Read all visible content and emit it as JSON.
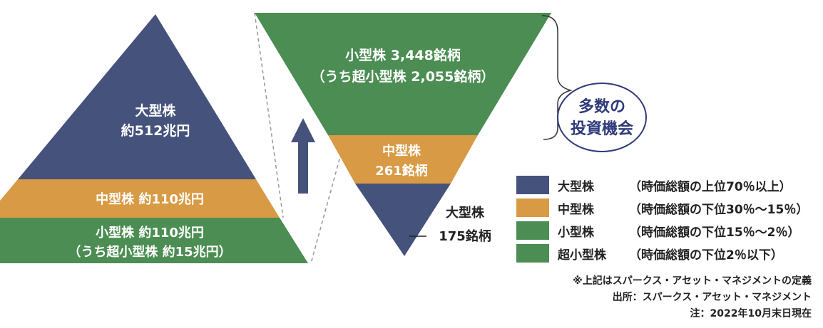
{
  "colors": {
    "large": "#44527c",
    "mid": "#d89a44",
    "small": "#4b8d52",
    "tiny": "#4b8d52",
    "callout": "#2f3b7a",
    "arrow": "#44527c"
  },
  "left_pyramid": {
    "large_name": "大型株",
    "large_value": "約512兆円",
    "mid_label": "中型株 約110兆円",
    "small_label": "小型株 約110兆円",
    "small_sub": "（うち超小型株 約15兆円）"
  },
  "right_pyramid": {
    "small_label": "小型株 3,448銘柄",
    "small_sub": "（うち超小型株 2,055銘柄）",
    "mid_name": "中型株",
    "mid_count": "261銘柄",
    "large_name": "大型株",
    "large_count": "175銘柄"
  },
  "callout": {
    "line1": "多数の",
    "line2": "投資機会"
  },
  "legend": [
    {
      "name": "大型株",
      "desc": "（時価総額の上位70％以上）",
      "color": "#44527c"
    },
    {
      "name": "中型株",
      "desc": "（時価総額の下位30％～15％）",
      "color": "#d89a44"
    },
    {
      "name": "小型株",
      "desc": "（時価総額の下位15％～2％）",
      "color": "#4b8d52"
    },
    {
      "name": "超小型株",
      "desc": "（時価総額の下位2％以下）",
      "color": "#4b8d52"
    }
  ],
  "notes": {
    "definition": "※上記はスパークス・アセット・マネジメントの定義",
    "source": "出所：スパークス・アセット・マネジメント",
    "date": "注：2022年10月末日現在"
  }
}
